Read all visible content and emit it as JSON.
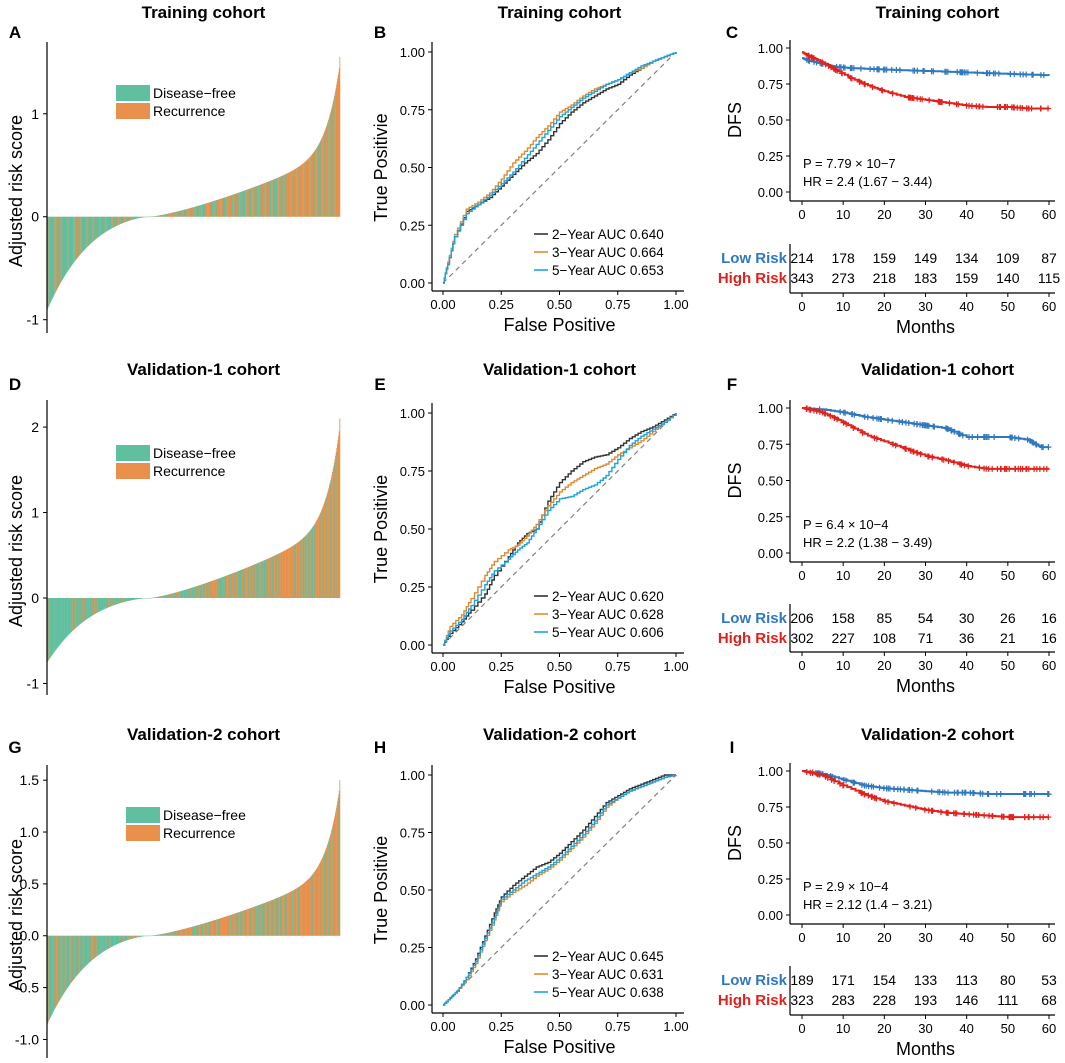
{
  "colors": {
    "disease_free": "#5fbf9f",
    "recurrence": "#e8904c",
    "low_risk": "#2f78c0",
    "high_risk": "#e3211c",
    "roc_2y": "#333333",
    "roc_3y": "#e08a2e",
    "roc_5y": "#1aa3e0",
    "diagonal": "#808080"
  },
  "chart_data": [
    {
      "panel": "A",
      "type": "bar",
      "title": "Training cohort",
      "ylabel": "Adjusted risk score",
      "yticks": [
        -1,
        0,
        1
      ],
      "ylim": [
        -1.1,
        1.6
      ],
      "n": 540,
      "min": -0.9,
      "max": 1.55,
      "legend": [
        "Disease−free",
        "Recurrence"
      ]
    },
    {
      "panel": "B",
      "type": "line",
      "title": "Training cohort",
      "xlabel": "False Positive",
      "ylabel": "True Positivie",
      "ticks": [
        "0.00",
        "0.25",
        "0.50",
        "0.75",
        "1.00"
      ],
      "series": [
        {
          "name": "2−Year AUC 0.640",
          "x": [
            0,
            0.02,
            0.05,
            0.1,
            0.15,
            0.2,
            0.25,
            0.3,
            0.35,
            0.4,
            0.45,
            0.5,
            0.55,
            0.6,
            0.65,
            0.7,
            0.75,
            0.8,
            0.85,
            0.9,
            0.95,
            1
          ],
          "y": [
            0,
            0.08,
            0.2,
            0.31,
            0.34,
            0.37,
            0.42,
            0.47,
            0.52,
            0.56,
            0.62,
            0.69,
            0.74,
            0.78,
            0.81,
            0.84,
            0.86,
            0.9,
            0.93,
            0.96,
            0.98,
            1
          ]
        },
        {
          "name": "3−Year AUC 0.664",
          "x": [
            0,
            0.02,
            0.05,
            0.1,
            0.15,
            0.2,
            0.25,
            0.3,
            0.35,
            0.4,
            0.45,
            0.5,
            0.55,
            0.6,
            0.65,
            0.7,
            0.75,
            0.8,
            0.85,
            0.9,
            0.95,
            1
          ],
          "y": [
            0,
            0.09,
            0.21,
            0.32,
            0.35,
            0.39,
            0.45,
            0.52,
            0.57,
            0.63,
            0.68,
            0.74,
            0.77,
            0.81,
            0.84,
            0.86,
            0.88,
            0.91,
            0.93,
            0.96,
            0.98,
            1
          ]
        },
        {
          "name": "5−Year AUC 0.653",
          "x": [
            0,
            0.02,
            0.05,
            0.1,
            0.15,
            0.2,
            0.25,
            0.3,
            0.35,
            0.4,
            0.45,
            0.5,
            0.55,
            0.6,
            0.65,
            0.7,
            0.75,
            0.8,
            0.85,
            0.9,
            0.95,
            1
          ],
          "y": [
            0,
            0.08,
            0.2,
            0.3,
            0.34,
            0.38,
            0.43,
            0.48,
            0.54,
            0.6,
            0.66,
            0.72,
            0.76,
            0.8,
            0.83,
            0.86,
            0.88,
            0.91,
            0.94,
            0.96,
            0.98,
            1
          ]
        }
      ]
    },
    {
      "panel": "C",
      "type": "line",
      "title": "Training cohort",
      "ylabel": "DFS",
      "xlabel": "Months",
      "xticks": [
        0,
        10,
        20,
        30,
        40,
        50,
        60
      ],
      "yticks": [
        "0.00",
        "0.25",
        "0.50",
        "0.75",
        "1.00"
      ],
      "stat_p": "P = 7.79 × 10−7",
      "stat_hr": "HR = 2.4 (1.67 − 3.44)",
      "series": [
        {
          "name": "Low Risk",
          "x": [
            0,
            2,
            5,
            8,
            12,
            20,
            30,
            40,
            50,
            60
          ],
          "y": [
            0.93,
            0.91,
            0.89,
            0.87,
            0.86,
            0.85,
            0.84,
            0.83,
            0.82,
            0.81
          ]
        },
        {
          "name": "High Risk",
          "x": [
            0,
            2,
            5,
            8,
            12,
            16,
            20,
            25,
            30,
            35,
            40,
            45,
            50,
            55,
            60
          ],
          "y": [
            0.97,
            0.94,
            0.9,
            0.85,
            0.79,
            0.74,
            0.7,
            0.66,
            0.64,
            0.62,
            0.6,
            0.59,
            0.59,
            0.58,
            0.58
          ]
        }
      ],
      "risk_table": {
        "rows": [
          {
            "label": "Low Risk",
            "values": [
              "214",
              "178",
              "159",
              "149",
              "134",
              "109",
              "87"
            ]
          },
          {
            "label": "High Risk",
            "values": [
              "343",
              "273",
              "218",
              "183",
              "159",
              "140",
              "115"
            ]
          }
        ]
      }
    },
    {
      "panel": "D",
      "type": "bar",
      "title": "Validation-1 cohort",
      "ylabel": "Adjusted risk score",
      "yticks": [
        -1,
        0,
        1,
        2
      ],
      "ylim": [
        -1.1,
        2.2
      ],
      "n": 480,
      "min": -0.75,
      "max": 2.1,
      "legend": [
        "Disease−free",
        "Recurrence"
      ]
    },
    {
      "panel": "E",
      "type": "line",
      "title": "Validation-1 cohort",
      "xlabel": "False Positive",
      "ylabel": "True Positivie",
      "ticks": [
        "0.00",
        "0.25",
        "0.50",
        "0.75",
        "1.00"
      ],
      "series": [
        {
          "name": "2−Year AUC 0.620",
          "x": [
            0,
            0.03,
            0.08,
            0.12,
            0.18,
            0.22,
            0.28,
            0.32,
            0.36,
            0.4,
            0.45,
            0.5,
            0.55,
            0.6,
            0.65,
            0.7,
            0.75,
            0.8,
            0.85,
            0.9,
            0.95,
            1
          ],
          "y": [
            0,
            0.05,
            0.1,
            0.15,
            0.22,
            0.3,
            0.38,
            0.44,
            0.48,
            0.5,
            0.62,
            0.7,
            0.75,
            0.79,
            0.81,
            0.82,
            0.85,
            0.89,
            0.92,
            0.94,
            0.97,
            1
          ]
        },
        {
          "name": "3−Year AUC 0.628",
          "x": [
            0,
            0.03,
            0.08,
            0.12,
            0.18,
            0.22,
            0.28,
            0.32,
            0.36,
            0.4,
            0.45,
            0.5,
            0.55,
            0.6,
            0.65,
            0.7,
            0.75,
            0.8,
            0.85,
            0.9,
            0.95,
            1
          ],
          "y": [
            0,
            0.08,
            0.13,
            0.2,
            0.3,
            0.36,
            0.41,
            0.43,
            0.47,
            0.52,
            0.6,
            0.66,
            0.7,
            0.73,
            0.76,
            0.78,
            0.82,
            0.85,
            0.88,
            0.92,
            0.96,
            1
          ]
        },
        {
          "name": "5−Year AUC 0.606",
          "x": [
            0,
            0.03,
            0.08,
            0.12,
            0.18,
            0.22,
            0.28,
            0.32,
            0.36,
            0.4,
            0.45,
            0.5,
            0.55,
            0.6,
            0.65,
            0.7,
            0.75,
            0.8,
            0.85,
            0.9,
            0.95,
            1
          ],
          "y": [
            0,
            0.06,
            0.11,
            0.17,
            0.26,
            0.32,
            0.37,
            0.41,
            0.44,
            0.5,
            0.58,
            0.63,
            0.64,
            0.67,
            0.69,
            0.73,
            0.8,
            0.86,
            0.9,
            0.93,
            0.96,
            1
          ]
        }
      ]
    },
    {
      "panel": "F",
      "type": "line",
      "title": "Validation-1 cohort",
      "ylabel": "DFS",
      "xlabel": "Months",
      "xticks": [
        0,
        10,
        20,
        30,
        40,
        50,
        60
      ],
      "yticks": [
        "0.00",
        "0.25",
        "0.50",
        "0.75",
        "1.00"
      ],
      "stat_p": "P = 6.4 × 10−4",
      "stat_hr": "HR = 2.2 (1.38 − 3.49)",
      "series": [
        {
          "name": "Low Risk",
          "x": [
            0,
            5,
            10,
            15,
            20,
            25,
            30,
            35,
            40,
            45,
            50,
            55,
            58,
            60
          ],
          "y": [
            1.0,
            0.99,
            0.97,
            0.94,
            0.92,
            0.9,
            0.88,
            0.86,
            0.8,
            0.8,
            0.8,
            0.78,
            0.73,
            0.73
          ]
        },
        {
          "name": "High Risk",
          "x": [
            0,
            5,
            8,
            12,
            16,
            20,
            25,
            30,
            35,
            40,
            45,
            50,
            55,
            60
          ],
          "y": [
            1.0,
            0.97,
            0.93,
            0.87,
            0.81,
            0.77,
            0.72,
            0.67,
            0.64,
            0.6,
            0.58,
            0.58,
            0.58,
            0.58
          ]
        }
      ],
      "risk_table": {
        "rows": [
          {
            "label": "Low Risk",
            "values": [
              "206",
              "158",
              "85",
              "54",
              "30",
              "26",
              "16"
            ]
          },
          {
            "label": "High Risk",
            "values": [
              "302",
              "227",
              "108",
              "71",
              "36",
              "21",
              "16"
            ]
          }
        ]
      }
    },
    {
      "panel": "G",
      "type": "bar",
      "title": "Validation-2 cohort",
      "ylabel": "Adjusted risk score",
      "yticks": [
        -1.0,
        -0.5,
        0.0,
        0.5,
        1.0,
        1.5
      ],
      "ylim": [
        -1.15,
        1.55
      ],
      "n": 520,
      "min": -0.85,
      "max": 1.5,
      "legend": [
        "Disease−free",
        "Recurrence"
      ]
    },
    {
      "panel": "H",
      "type": "line",
      "title": "Validation-2 cohort",
      "xlabel": "False Positive",
      "ylabel": "True Positivie",
      "ticks": [
        "0.00",
        "0.25",
        "0.50",
        "0.75",
        "1.00"
      ],
      "series": [
        {
          "name": "2−Year AUC 0.645",
          "x": [
            0,
            0.03,
            0.06,
            0.1,
            0.14,
            0.18,
            0.22,
            0.25,
            0.3,
            0.35,
            0.4,
            0.45,
            0.5,
            0.55,
            0.6,
            0.65,
            0.7,
            0.75,
            0.8,
            0.85,
            0.9,
            0.95,
            1
          ],
          "y": [
            0,
            0.03,
            0.06,
            0.12,
            0.2,
            0.3,
            0.4,
            0.47,
            0.52,
            0.56,
            0.6,
            0.62,
            0.66,
            0.71,
            0.76,
            0.82,
            0.88,
            0.91,
            0.94,
            0.96,
            0.98,
            1,
            1
          ]
        },
        {
          "name": "3−Year AUC 0.631",
          "x": [
            0,
            0.03,
            0.06,
            0.1,
            0.14,
            0.18,
            0.22,
            0.25,
            0.3,
            0.35,
            0.4,
            0.45,
            0.5,
            0.55,
            0.6,
            0.65,
            0.7,
            0.75,
            0.8,
            0.85,
            0.9,
            0.95,
            1
          ],
          "y": [
            0,
            0.03,
            0.06,
            0.11,
            0.18,
            0.28,
            0.37,
            0.45,
            0.49,
            0.52,
            0.56,
            0.59,
            0.63,
            0.68,
            0.73,
            0.79,
            0.86,
            0.9,
            0.93,
            0.95,
            0.97,
            0.99,
            1
          ]
        },
        {
          "name": "5−Year AUC 0.638",
          "x": [
            0,
            0.03,
            0.06,
            0.1,
            0.14,
            0.18,
            0.22,
            0.25,
            0.3,
            0.35,
            0.4,
            0.45,
            0.5,
            0.55,
            0.6,
            0.65,
            0.7,
            0.75,
            0.8,
            0.85,
            0.9,
            0.95,
            1
          ],
          "y": [
            0,
            0.03,
            0.06,
            0.12,
            0.19,
            0.29,
            0.38,
            0.46,
            0.5,
            0.54,
            0.57,
            0.6,
            0.64,
            0.69,
            0.74,
            0.8,
            0.87,
            0.9,
            0.93,
            0.95,
            0.97,
            0.99,
            1
          ]
        }
      ]
    },
    {
      "panel": "I",
      "type": "line",
      "title": "Validation-2 cohort",
      "ylabel": "DFS",
      "xlabel": "Months",
      "xticks": [
        0,
        10,
        20,
        30,
        40,
        50,
        60
      ],
      "yticks": [
        "0.00",
        "0.25",
        "0.50",
        "0.75",
        "1.00"
      ],
      "stat_p": "P = 2.9 × 10−4",
      "stat_hr": "HR = 2.12 (1.4 − 3.21)",
      "series": [
        {
          "name": "Low Risk",
          "x": [
            0,
            5,
            10,
            15,
            20,
            25,
            30,
            35,
            40,
            45,
            50,
            55,
            60
          ],
          "y": [
            1.0,
            0.98,
            0.94,
            0.9,
            0.88,
            0.87,
            0.86,
            0.85,
            0.85,
            0.84,
            0.84,
            0.84,
            0.84
          ]
        },
        {
          "name": "High Risk",
          "x": [
            0,
            5,
            10,
            15,
            20,
            25,
            30,
            35,
            40,
            45,
            50,
            55,
            60
          ],
          "y": [
            1.0,
            0.97,
            0.9,
            0.84,
            0.79,
            0.76,
            0.73,
            0.71,
            0.7,
            0.69,
            0.68,
            0.68,
            0.68
          ]
        }
      ],
      "risk_table": {
        "rows": [
          {
            "label": "Low Risk",
            "values": [
              "189",
              "171",
              "154",
              "133",
              "113",
              "80",
              "53"
            ]
          },
          {
            "label": "High Risk",
            "values": [
              "323",
              "283",
              "228",
              "193",
              "146",
              "111",
              "68"
            ]
          }
        ]
      }
    }
  ]
}
